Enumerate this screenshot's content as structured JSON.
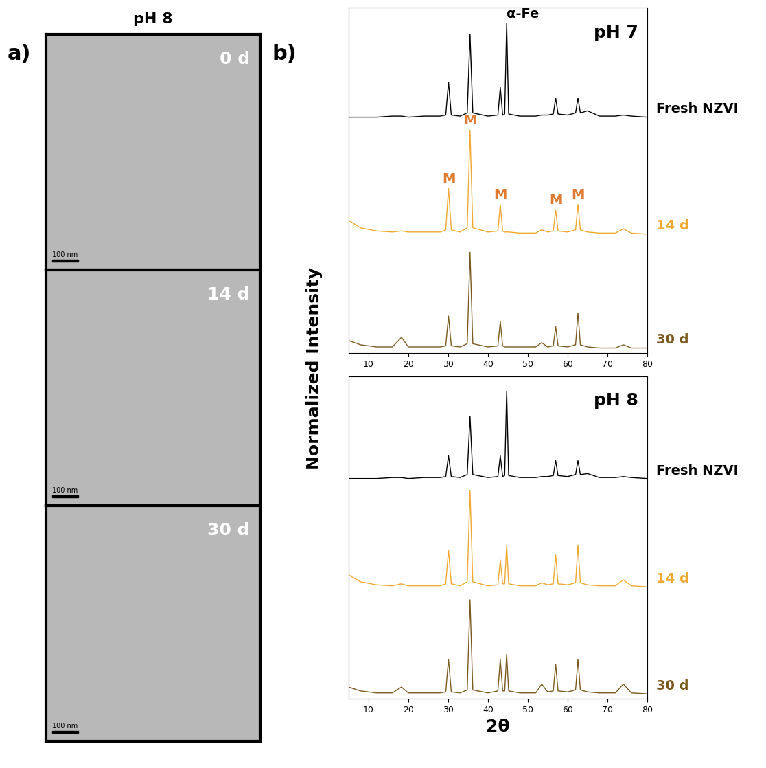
{
  "panel_labels": [
    "a)",
    "b)"
  ],
  "y_label": "Normalized Intensity",
  "tem": {
    "title": "pH 8",
    "images": [
      {
        "label": "0 d"
      },
      {
        "label": "14 d"
      },
      {
        "label": "30 d"
      }
    ],
    "scale_bar": "100 nm"
  },
  "chart_data": [
    {
      "type": "line",
      "title": "pH 7",
      "xlim": [
        5,
        80
      ],
      "xticks": [
        10,
        20,
        30,
        40,
        50,
        60,
        70,
        80
      ],
      "ylim": [
        0,
        3.25
      ],
      "tick_labels": "x",
      "x": [
        5,
        8,
        12,
        16,
        18.3,
        20,
        24,
        28,
        29.4,
        30.1,
        30.8,
        33,
        34.8,
        35.5,
        36.2,
        40,
        42.5,
        43.1,
        43.7,
        44.2,
        44.7,
        45.2,
        48,
        52,
        53.5,
        55,
        56.4,
        57.0,
        57.6,
        60,
        62.0,
        62.6,
        63.2,
        65,
        68,
        72,
        74,
        76,
        80
      ],
      "series": [
        {
          "name": "Fresh NZVI",
          "color": "#000000",
          "values": [
            2.22,
            2.22,
            2.22,
            2.23,
            2.23,
            2.22,
            2.23,
            2.23,
            2.24,
            2.55,
            2.24,
            2.23,
            2.26,
            3.0,
            2.26,
            2.23,
            2.24,
            2.5,
            2.24,
            2.25,
            3.1,
            2.25,
            2.23,
            2.23,
            2.24,
            2.24,
            2.25,
            2.4,
            2.25,
            2.24,
            2.26,
            2.4,
            2.26,
            2.28,
            2.23,
            2.23,
            2.24,
            2.23,
            2.22
          ]
        },
        {
          "name": "14 d",
          "color": "#f0a830",
          "values": [
            1.25,
            1.18,
            1.15,
            1.14,
            1.15,
            1.14,
            1.14,
            1.14,
            1.16,
            1.55,
            1.16,
            1.14,
            1.18,
            2.1,
            1.18,
            1.14,
            1.15,
            1.4,
            1.15,
            1.14,
            1.14,
            1.14,
            1.13,
            1.13,
            1.16,
            1.14,
            1.15,
            1.35,
            1.15,
            1.14,
            1.16,
            1.4,
            1.16,
            1.14,
            1.13,
            1.13,
            1.17,
            1.13,
            1.12
          ]
        },
        {
          "name": "30 d",
          "color": "#7a5a1e",
          "values": [
            0.12,
            0.08,
            0.06,
            0.06,
            0.15,
            0.06,
            0.06,
            0.06,
            0.07,
            0.35,
            0.07,
            0.06,
            0.09,
            0.95,
            0.09,
            0.06,
            0.07,
            0.3,
            0.07,
            0.06,
            0.06,
            0.06,
            0.06,
            0.06,
            0.1,
            0.06,
            0.07,
            0.25,
            0.07,
            0.06,
            0.08,
            0.38,
            0.08,
            0.06,
            0.05,
            0.05,
            0.08,
            0.05,
            0.05
          ]
        }
      ],
      "annotations": [
        {
          "text": "α-Fe",
          "x": 44.7,
          "series": "Fresh NZVI",
          "color": "#000000"
        },
        {
          "text": "M",
          "x": 30.1,
          "series": "14 d",
          "color": "#e07a30"
        },
        {
          "text": "M",
          "x": 35.5,
          "series": "14 d",
          "color": "#e07a30"
        },
        {
          "text": "M",
          "x": 43.1,
          "series": "14 d",
          "color": "#e07a30"
        },
        {
          "text": "M",
          "x": 57.0,
          "series": "14 d",
          "color": "#e07a30"
        },
        {
          "text": "M",
          "x": 62.6,
          "series": "14 d",
          "color": "#e07a30"
        }
      ]
    },
    {
      "type": "line",
      "title": "pH 8",
      "x_label": "2θ",
      "xlim": [
        5,
        80
      ],
      "xticks": [
        10,
        20,
        30,
        40,
        50,
        60,
        70,
        80
      ],
      "ylim": [
        0,
        3.25
      ],
      "tick_labels": "x",
      "x": [
        5,
        8,
        12,
        16,
        18.3,
        20,
        24,
        28,
        29.4,
        30.1,
        30.8,
        33,
        34.8,
        35.5,
        36.2,
        40,
        42.5,
        43.1,
        43.7,
        44.2,
        44.7,
        45.2,
        48,
        52,
        53.5,
        55,
        56.4,
        57.0,
        57.6,
        60,
        62.0,
        62.6,
        63.2,
        65,
        68,
        72,
        74,
        76,
        80
      ],
      "series": [
        {
          "name": "Fresh NZVI",
          "color": "#000000",
          "values": [
            2.22,
            2.22,
            2.22,
            2.23,
            2.23,
            2.22,
            2.23,
            2.23,
            2.24,
            2.45,
            2.24,
            2.23,
            2.26,
            2.85,
            2.26,
            2.23,
            2.24,
            2.45,
            2.24,
            2.25,
            3.1,
            2.25,
            2.23,
            2.23,
            2.24,
            2.24,
            2.25,
            2.4,
            2.25,
            2.24,
            2.26,
            2.4,
            2.26,
            2.27,
            2.23,
            2.23,
            2.24,
            2.23,
            2.22
          ]
        },
        {
          "name": "14 d",
          "color": "#f0a830",
          "values": [
            1.25,
            1.18,
            1.15,
            1.14,
            1.16,
            1.14,
            1.14,
            1.14,
            1.16,
            1.5,
            1.16,
            1.14,
            1.18,
            2.1,
            1.18,
            1.14,
            1.15,
            1.4,
            1.16,
            1.16,
            1.55,
            1.16,
            1.14,
            1.14,
            1.17,
            1.15,
            1.16,
            1.45,
            1.16,
            1.15,
            1.17,
            1.55,
            1.17,
            1.15,
            1.14,
            1.14,
            1.2,
            1.14,
            1.13
          ]
        },
        {
          "name": "30 d",
          "color": "#7a5a1e",
          "values": [
            0.12,
            0.08,
            0.06,
            0.06,
            0.12,
            0.06,
            0.06,
            0.06,
            0.07,
            0.4,
            0.07,
            0.06,
            0.09,
            1.0,
            0.09,
            0.06,
            0.08,
            0.4,
            0.08,
            0.08,
            0.45,
            0.08,
            0.06,
            0.06,
            0.15,
            0.07,
            0.08,
            0.35,
            0.08,
            0.07,
            0.09,
            0.4,
            0.09,
            0.07,
            0.06,
            0.06,
            0.15,
            0.06,
            0.05
          ]
        }
      ]
    }
  ]
}
